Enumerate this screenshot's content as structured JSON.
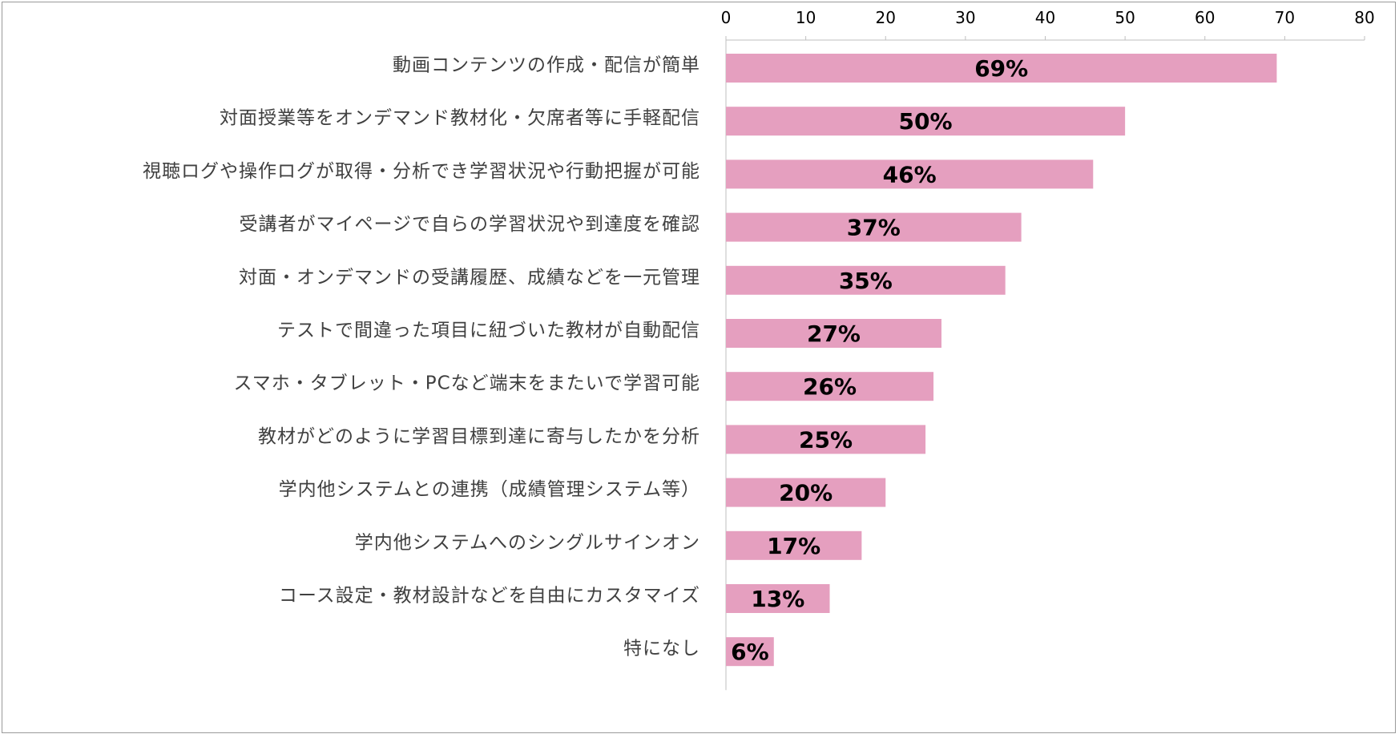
{
  "chart_data": {
    "type": "bar",
    "orientation": "horizontal",
    "title": "",
    "xlabel": "",
    "ylabel": "",
    "xlim": [
      0,
      80
    ],
    "x_ticks": [
      0,
      10,
      20,
      30,
      40,
      50,
      60,
      70,
      80
    ],
    "x_axis_position": "top",
    "grid": false,
    "legend": "none",
    "bar_color": "#e59fbf",
    "categories": [
      "動画コンテンツの作成・配信が簡単",
      "対面授業等をオンデマンド教材化・欠席者等に手軽配信",
      "視聴ログや操作ログが取得・分析でき学習状況や行動把握が可能",
      "受講者がマイページで自らの学習状況や到達度を確認",
      "対面・オンデマンドの受講履歴、成績などを一元管理",
      "テストで間違った項目に紐づいた教材が自動配信",
      "スマホ・タブレット・PCなど端末をまたいで学習可能",
      "教材がどのように学習目標到達に寄与したかを分析",
      "学内他システムとの連携（成績管理システム等）",
      "学内他システムへのシングルサインオン",
      "コース設定・教材設計などを自由にカスタマイズ",
      "特になし"
    ],
    "values": [
      69,
      50,
      46,
      37,
      35,
      27,
      26,
      25,
      20,
      17,
      13,
      6
    ],
    "data_labels": [
      "69%",
      "50%",
      "46%",
      "37%",
      "35%",
      "27%",
      "26%",
      "25%",
      "20%",
      "17%",
      "13%",
      "6%"
    ]
  }
}
